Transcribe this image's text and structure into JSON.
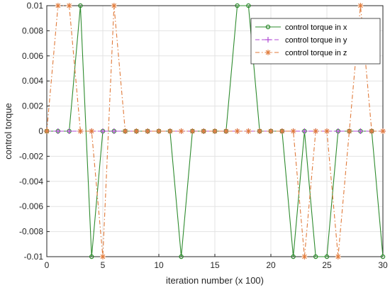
{
  "chart_data": {
    "type": "line",
    "xlabel": "iteration number (x 100)",
    "ylabel": "control torque",
    "xlim": [
      0,
      30
    ],
    "ylim": [
      -0.01,
      0.01
    ],
    "x_ticks": [
      "0",
      "5",
      "10",
      "15",
      "20",
      "25",
      "30"
    ],
    "y_ticks": [
      "-0.01",
      "-0.008",
      "-0.006",
      "-0.004",
      "-0.002",
      "0",
      "0.002",
      "0.004",
      "0.006",
      "0.008",
      "0.01"
    ],
    "grid": true,
    "legend_position": "top-right",
    "x": [
      0,
      1,
      2,
      3,
      4,
      5,
      6,
      7,
      8,
      9,
      10,
      11,
      12,
      13,
      14,
      15,
      16,
      17,
      18,
      19,
      20,
      21,
      22,
      23,
      24,
      25,
      26,
      27,
      28,
      29,
      30
    ],
    "series": [
      {
        "name": "control torque in x",
        "color": "#2e8b2e",
        "line": "solid",
        "marker": "circle",
        "values": [
          0,
          0,
          0,
          0.01,
          -0.01,
          0,
          0,
          0,
          0,
          0,
          0,
          0,
          -0.01,
          0,
          0,
          0,
          0,
          0.01,
          0.01,
          0,
          0,
          0,
          -0.01,
          0,
          -0.01,
          -0.01,
          0,
          0,
          0,
          0,
          -0.01
        ]
      },
      {
        "name": "control torque in y",
        "color": "#b04bd4",
        "line": "dashed",
        "marker": "plus",
        "values": [
          0,
          0,
          0,
          0,
          0,
          0,
          0,
          0,
          0,
          0,
          0,
          0,
          0,
          0,
          0,
          0,
          0,
          0,
          0,
          0,
          0,
          0,
          0,
          0,
          0,
          0,
          0,
          0,
          0,
          0,
          0
        ]
      },
      {
        "name": "control torque in z",
        "color": "#e07a3a",
        "line": "dashdot",
        "marker": "star",
        "values": [
          0,
          0.01,
          0.01,
          0,
          0,
          -0.01,
          0.01,
          0,
          0,
          0,
          0,
          0,
          0,
          0,
          0,
          0,
          0,
          0,
          0,
          0,
          0,
          0,
          0,
          -0.01,
          0,
          0,
          -0.01,
          0,
          0.01,
          0,
          0
        ]
      }
    ]
  }
}
